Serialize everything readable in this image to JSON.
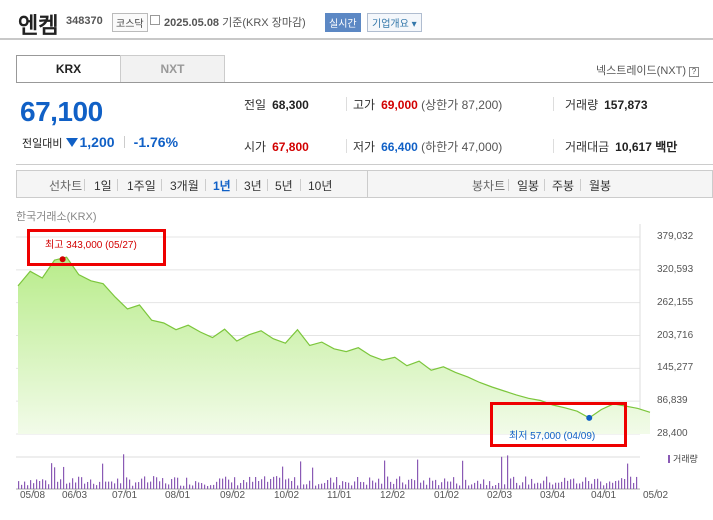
{
  "header": {
    "name": "엔켐",
    "code": "348370",
    "market": "코스닥",
    "date": "2025.05.08",
    "basis": "기준(KRX 장마감)",
    "live_badge": "실시간",
    "company_info": "기업개요"
  },
  "tabs": [
    {
      "label": "KRX",
      "selected": true
    },
    {
      "label": "NXT",
      "selected": false
    }
  ],
  "nxt_link": "넥스트레이드(NXT)",
  "quote": {
    "price": "67,100",
    "change_label": "전일대비",
    "change": "1,200",
    "change_pct": "-1.76%"
  },
  "stats": {
    "prev_close_label": "전일",
    "prev_close": "68,300",
    "high_label": "고가",
    "high": "69,000",
    "upper_limit": "(상한가 87,200)",
    "volume_label": "거래량",
    "volume": "157,873",
    "open_label": "시가",
    "open": "67,800",
    "low_label": "저가",
    "low": "66,400",
    "lower_limit": "(하한가 47,000)",
    "amount_label": "거래대금",
    "amount": "10,617",
    "amount_unit": "백만"
  },
  "periods": {
    "line_label": "선차트",
    "items": [
      "1일",
      "1주일",
      "3개월",
      "1년",
      "3년",
      "5년",
      "10년"
    ],
    "selected": "1년",
    "candle_label": "봉차트",
    "candle_items": [
      "일봉",
      "주봉",
      "월봉"
    ]
  },
  "chart_data": {
    "type": "area",
    "source_label": "한국거래소(KRX)",
    "y_ticks": [
      "379,032",
      "320,593",
      "262,155",
      "203,716",
      "145,277",
      "86,839",
      "28,400"
    ],
    "ylim": [
      28400,
      379032
    ],
    "x_ticks": [
      "05/08",
      "06/03",
      "07/01",
      "08/01",
      "09/02",
      "10/02",
      "11/01",
      "12/02",
      "01/02",
      "02/03",
      "03/04",
      "04/01",
      "05/02"
    ],
    "values": [
      292000,
      318000,
      306000,
      338000,
      343000,
      312000,
      301000,
      296000,
      272000,
      251000,
      258000,
      231000,
      226000,
      214000,
      222000,
      210000,
      200000,
      215000,
      194000,
      205000,
      212000,
      198000,
      190000,
      214000,
      186000,
      192000,
      180000,
      175000,
      182000,
      168000,
      160000,
      165000,
      150000,
      158000,
      142000,
      148000,
      138000,
      130000,
      120000,
      112000,
      105000,
      98000,
      92000,
      88000,
      80000,
      75000,
      69000,
      57000,
      72000,
      82000,
      78000,
      74000,
      67100
    ],
    "annotations": [
      {
        "text": "최고 343,000 (05/27)",
        "color": "#d20000"
      },
      {
        "text": "최저 57,000 (04/09)",
        "color": "#1060c6"
      }
    ],
    "volume_label": "거래량",
    "colors": {
      "line": "#7cc63c",
      "fill_top": "#b8ec8a",
      "fill_bottom": "#f2fbe9",
      "volume": "#8a5ab5"
    }
  }
}
